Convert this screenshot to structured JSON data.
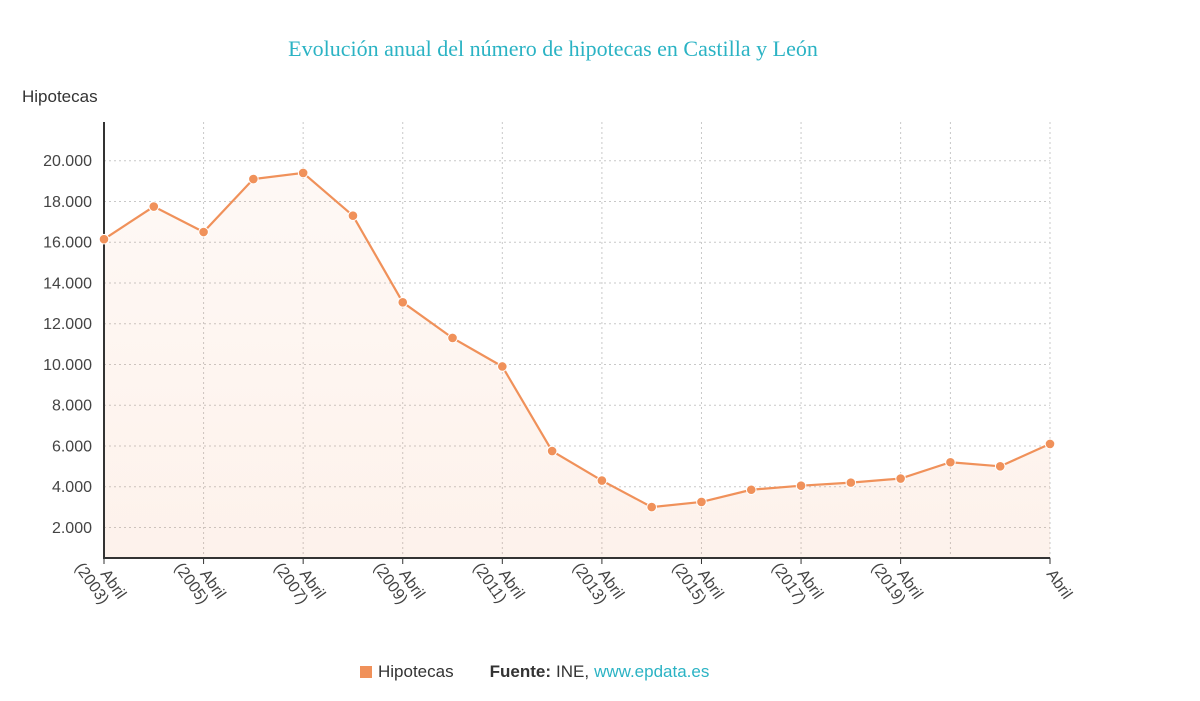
{
  "chart_data": {
    "type": "area",
    "title": "Evolución anual del número de hipotecas en Castilla y León",
    "ylabel": "Hipotecas",
    "ylim": [
      500,
      21900
    ],
    "y_ticks": [
      2000,
      4000,
      6000,
      8000,
      10000,
      12000,
      14000,
      16000,
      18000,
      20000
    ],
    "y_tick_labels": [
      "2.000",
      "4.000",
      "6.000",
      "8.000",
      "10.000",
      "12.000",
      "14.000",
      "16.000",
      "18.000",
      "20.000"
    ],
    "x_tick_labels": [
      [
        "Abril",
        "(2003)"
      ],
      [
        "Abril",
        "(2005)"
      ],
      [
        "Abril",
        "(2007)"
      ],
      [
        "Abril",
        "(2009)"
      ],
      [
        "Abril",
        "(2011)"
      ],
      [
        "Abril",
        "(2013)"
      ],
      [
        "Abril",
        "(2015)"
      ],
      [
        "Abril",
        "(2017)"
      ],
      [
        "Abril",
        "(2019)"
      ],
      [
        "Abril"
      ]
    ],
    "grid": true,
    "series": [
      {
        "name": "Hipotecas",
        "color": "#f0915a",
        "values": [
          16150,
          17750,
          16500,
          19100,
          19400,
          17300,
          13050,
          11300,
          9900,
          5750,
          4300,
          3000,
          3250,
          3850,
          4050,
          4200,
          4400,
          5200,
          5000,
          6100
        ]
      }
    ]
  },
  "legend": {
    "series_label": "Hipotecas",
    "swatch_color": "#f0915a"
  },
  "source": {
    "label": "Fuente:",
    "name": "INE,",
    "link_text": "www.epdata.es"
  }
}
